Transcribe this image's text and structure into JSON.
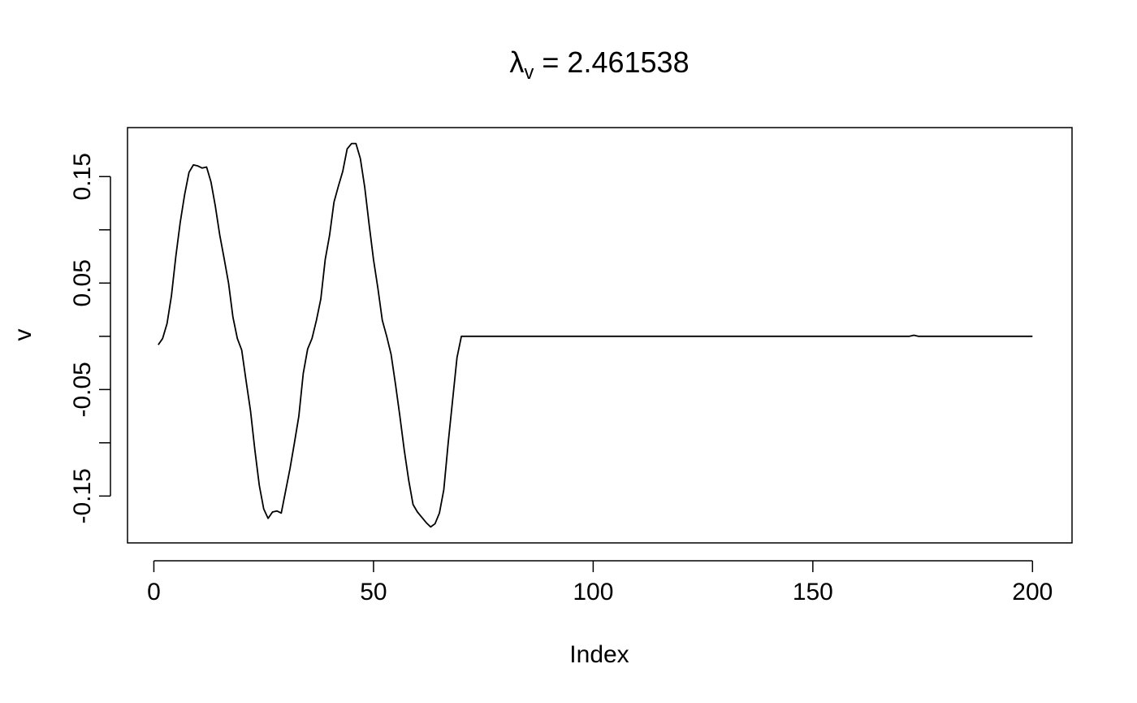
{
  "chart_data": {
    "type": "line",
    "title": {
      "symbol": "λ",
      "subscript": "v",
      "equals_value": " = 2.461538"
    },
    "xlabel": "Index",
    "ylabel": "v",
    "xlim": [
      -6,
      209
    ],
    "ylim": [
      -0.194,
      0.196
    ],
    "xticks": [
      0,
      50,
      100,
      150,
      200
    ],
    "xtick_labels": [
      "0",
      "50",
      "100",
      "150",
      "200"
    ],
    "yticks": [
      -0.15,
      -0.1,
      -0.05,
      0,
      0.05,
      0.1,
      0.15
    ],
    "yticks_labeled": [
      "-0.15",
      "-0.05",
      "0.05",
      "0.15"
    ],
    "grid": false,
    "legend": "none",
    "series": [
      {
        "name": "v",
        "color": "#000000",
        "x": [
          1,
          2,
          3,
          4,
          5,
          6,
          7,
          8,
          9,
          10,
          11,
          12,
          13,
          14,
          15,
          16,
          17,
          18,
          19,
          20,
          21,
          22,
          23,
          24,
          25,
          26,
          27,
          28,
          29,
          30,
          31,
          32,
          33,
          34,
          35,
          36,
          37,
          38,
          39,
          40,
          41,
          42,
          43,
          44,
          45,
          46,
          47,
          48,
          49,
          50,
          51,
          52,
          53,
          54,
          55,
          56,
          57,
          58,
          59,
          60,
          61,
          62,
          63,
          64,
          65,
          66,
          67,
          68,
          69,
          70,
          100,
          150,
          172,
          173,
          174,
          200
        ],
        "y": [
          -0.008,
          -0.002,
          0.012,
          0.038,
          0.075,
          0.107,
          0.133,
          0.154,
          0.161,
          0.16,
          0.158,
          0.159,
          0.145,
          0.122,
          0.095,
          0.073,
          0.05,
          0.018,
          -0.002,
          -0.013,
          -0.042,
          -0.07,
          -0.107,
          -0.14,
          -0.162,
          -0.171,
          -0.165,
          -0.164,
          -0.166,
          -0.145,
          -0.124,
          -0.1,
          -0.075,
          -0.035,
          -0.012,
          -0.002,
          0.015,
          0.035,
          0.072,
          0.095,
          0.126,
          0.141,
          0.155,
          0.176,
          0.181,
          0.181,
          0.167,
          0.14,
          0.105,
          0.072,
          0.045,
          0.015,
          0.0,
          -0.017,
          -0.045,
          -0.075,
          -0.107,
          -0.135,
          -0.158,
          -0.165,
          -0.17,
          -0.175,
          -0.179,
          -0.176,
          -0.166,
          -0.144,
          -0.1,
          -0.06,
          -0.02,
          0.0,
          0.0,
          0.0,
          0.0,
          0.001,
          0.0,
          0.0
        ]
      }
    ]
  }
}
